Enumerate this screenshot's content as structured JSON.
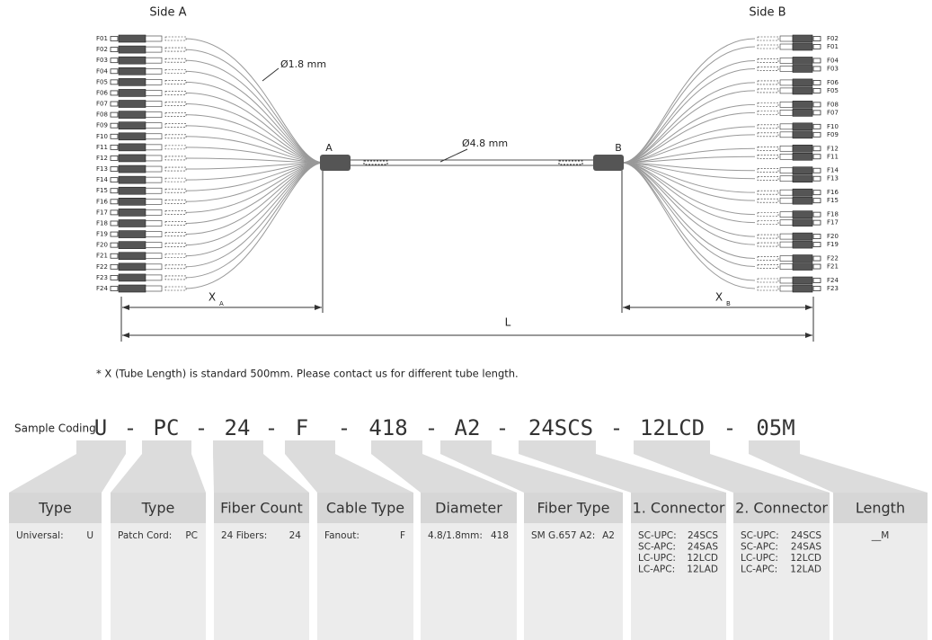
{
  "diagram": {
    "side_a": "Side A",
    "side_b": "Side B",
    "fibers_a": [
      "F01",
      "F02",
      "F03",
      "F04",
      "F05",
      "F06",
      "F07",
      "F08",
      "F09",
      "F10",
      "F11",
      "F12",
      "F13",
      "F14",
      "F15",
      "F16",
      "F17",
      "F18",
      "F19",
      "F20",
      "F21",
      "F22",
      "F23",
      "F24"
    ],
    "fibers_b": [
      "F02",
      "F01",
      "F04",
      "F03",
      "F06",
      "F05",
      "F08",
      "F07",
      "F10",
      "F09",
      "F12",
      "F11",
      "F14",
      "F13",
      "F16",
      "F15",
      "F18",
      "F17",
      "F20",
      "F19",
      "F22",
      "F21",
      "F24",
      "F23"
    ],
    "breakout_diameter": "Ø1.8 mm",
    "cable_diameter": "Ø4.8 mm",
    "end_a": "A",
    "end_b": "B",
    "tube_a": {
      "main": "X",
      "sub": "A"
    },
    "tube_b": {
      "main": "X",
      "sub": "B"
    },
    "length": "L"
  },
  "note": "* X (Tube Length) is standard 500mm. Please contact us for different tube length.",
  "coding": {
    "label": "Sample Coding",
    "separator": "-",
    "segments": [
      "U",
      "PC",
      "24",
      "F",
      "418",
      "A2",
      "24SCS",
      "12LCD",
      "05M"
    ]
  },
  "columns": [
    {
      "title": "Type",
      "rows": [
        [
          "Universal:",
          "U"
        ]
      ]
    },
    {
      "title": "Type",
      "rows": [
        [
          "Patch Cord:",
          "PC"
        ]
      ]
    },
    {
      "title": "Fiber Count",
      "rows": [
        [
          "24 Fibers:",
          "24"
        ]
      ]
    },
    {
      "title": "Cable Type",
      "rows": [
        [
          "Fanout:",
          "F"
        ]
      ]
    },
    {
      "title": "Diameter",
      "rows": [
        [
          "4.8/1.8mm:",
          "418"
        ]
      ]
    },
    {
      "title": "Fiber Type",
      "rows": [
        [
          "SM G.657 A2:",
          "A2"
        ]
      ]
    },
    {
      "title": "1. Connector",
      "rows": [
        [
          "SC-UPC:",
          "24SCS"
        ],
        [
          "SC-APC:",
          "24SAS"
        ],
        [
          "LC-UPC:",
          "12LCD"
        ],
        [
          "LC-APC:",
          "12LAD"
        ]
      ]
    },
    {
      "title": "2. Connector",
      "rows": [
        [
          "SC-UPC:",
          "24SCS"
        ],
        [
          "SC-APC:",
          "24SAS"
        ],
        [
          "LC-UPC:",
          "12LCD"
        ],
        [
          "LC-APC:",
          "12LAD"
        ]
      ]
    },
    {
      "title": "Length",
      "rows": [
        [
          "__M"
        ]
      ]
    }
  ]
}
